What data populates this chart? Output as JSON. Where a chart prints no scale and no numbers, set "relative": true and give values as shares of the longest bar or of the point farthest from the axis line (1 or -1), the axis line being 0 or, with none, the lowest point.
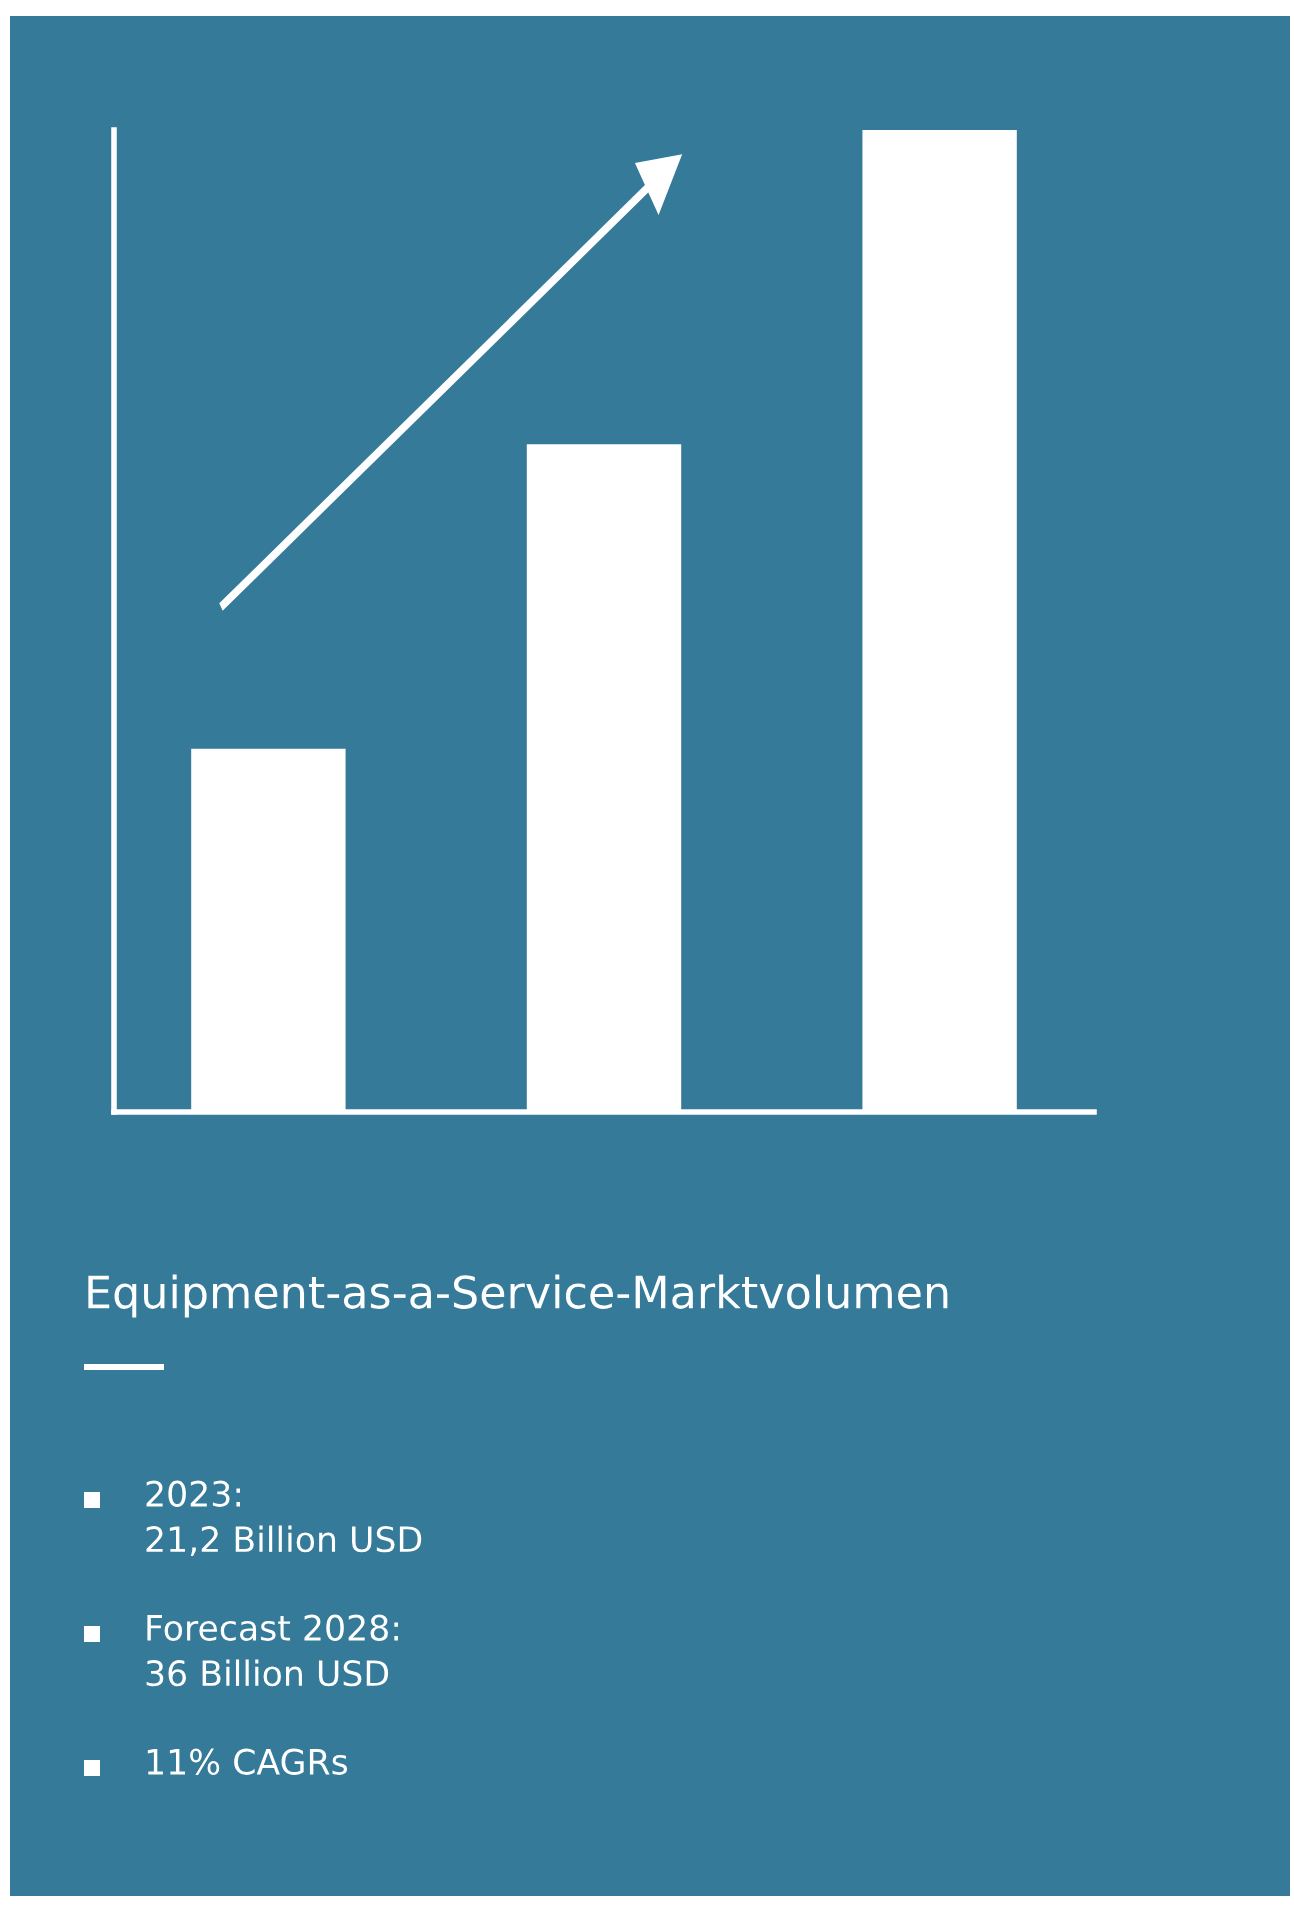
{
  "chart_data": {
    "type": "bar",
    "relative": true,
    "categories": [
      null,
      null,
      null
    ],
    "values": [
      0.37,
      0.68,
      1
    ],
    "color": "#ffffff",
    "title": "Equipment-as-a-Service-Marktvolumen",
    "annotations": [
      "2023:\n21,2 Billion USD",
      "Forecast 2028:\n36 Billion USD",
      "11% CAGRs"
    ],
    "grid": false,
    "legend": false
  }
}
